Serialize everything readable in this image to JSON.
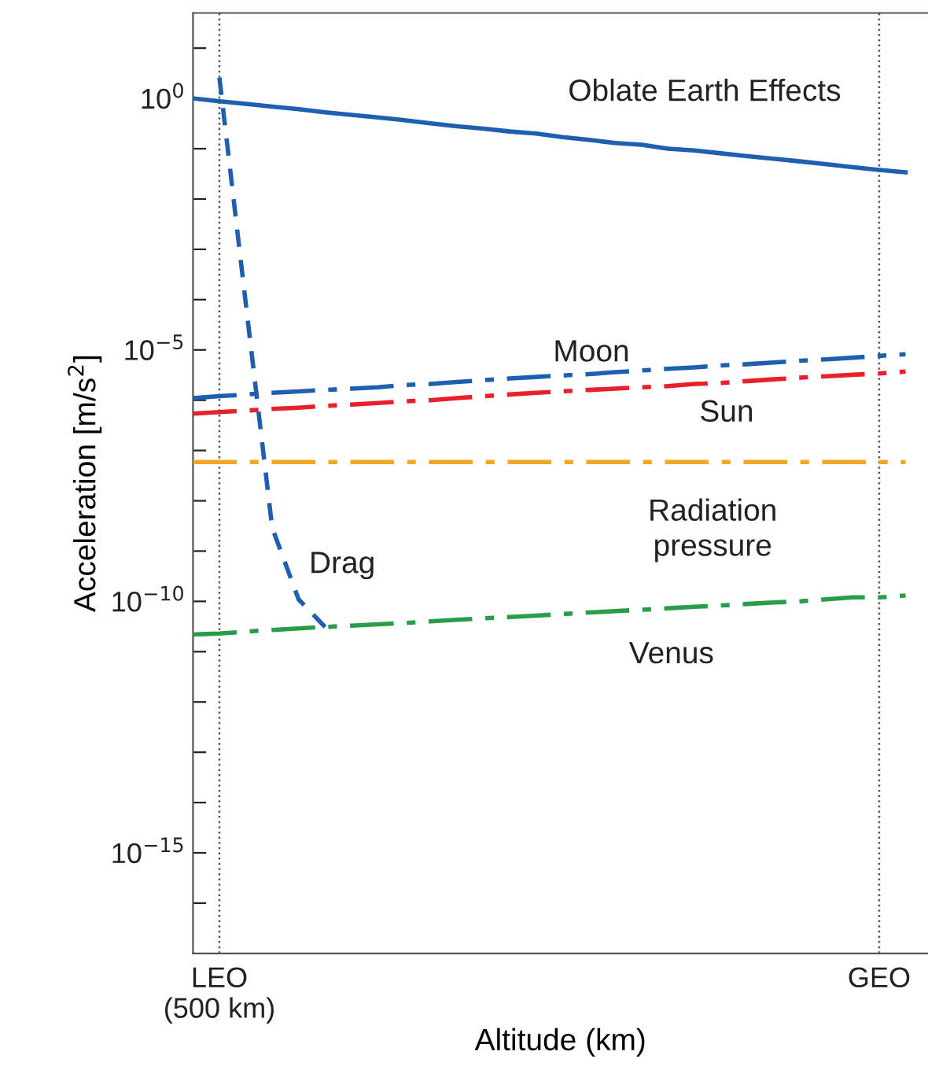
{
  "chart_data": {
    "type": "line",
    "xlabel": "Altitude (km)",
    "ylabel": "Acceleration [m/s$^{2}$]",
    "log": "y",
    "categories": [
      null,
      "LEO\n(500 km)",
      null,
      null,
      null,
      null,
      null,
      null,
      null,
      null,
      null,
      null,
      null,
      null,
      null,
      null,
      null,
      null,
      null,
      null,
      null,
      null,
      null,
      null,
      null,
      null,
      "GEO",
      null
    ],
    "ylim": [
      1e-17,
      50
    ],
    "yticks": [
      {
        "value": 10,
        "label": null
      },
      {
        "value": 1,
        "label": "10$^{0}$"
      },
      {
        "value": 0.1,
        "label": null
      },
      {
        "value": 0.01,
        "label": null
      },
      {
        "value": 0.001,
        "label": null
      },
      {
        "value": 0.0001,
        "label": null
      },
      {
        "value": 1e-05,
        "label": "10$^{−5}$"
      },
      {
        "value": 1e-06,
        "label": null
      },
      {
        "value": 1e-07,
        "label": null
      },
      {
        "value": 1e-08,
        "label": null
      },
      {
        "value": 1e-09,
        "label": null
      },
      {
        "value": 1e-10,
        "label": "10$^{−10}$"
      },
      {
        "value": 1e-11,
        "label": null
      },
      {
        "value": 1e-12,
        "label": null
      },
      {
        "value": 1e-13,
        "label": null
      },
      {
        "value": 1e-14,
        "label": null
      },
      {
        "value": 1e-15,
        "label": "10$^{−15}$"
      },
      {
        "value": 1e-16,
        "label": null
      }
    ],
    "ref_lines": [
      {
        "axis": "x",
        "value": "LEO\n(500 km)",
        "color": "#555555",
        "line_style": "dotted"
      },
      {
        "axis": "x",
        "value": "GEO",
        "color": "#555555",
        "line_style": "dotted"
      }
    ],
    "series": [
      {
        "name": "Oblate Earth Effects",
        "color": "#1f5fb0",
        "line_style": "solid",
        "values": [
          1,
          0.88,
          0.78,
          0.69,
          0.61,
          0.53,
          0.47,
          0.42,
          0.37,
          0.32,
          0.28,
          0.25,
          0.22,
          0.2,
          0.17,
          0.15,
          0.13,
          0.12,
          0.1,
          0.092,
          0.081,
          0.071,
          0.063,
          0.056,
          0.049,
          0.043,
          0.038,
          0.034
        ]
      },
      {
        "name": "Moon",
        "color": "#1f5fb0",
        "line_style": "dashdot",
        "values": [
          1.1e-06,
          1.2e-06,
          1.3e-06,
          1.4e-06,
          1.5e-06,
          1.6e-06,
          1.7e-06,
          1.8e-06,
          2e-06,
          2.1e-06,
          2.3e-06,
          2.5e-06,
          2.7e-06,
          2.9e-06,
          3.1e-06,
          3.3e-06,
          3.6e-06,
          3.9e-06,
          4.2e-06,
          4.5e-06,
          4.9e-06,
          5.2e-06,
          5.6e-06,
          6.1e-06,
          6.5e-06,
          7e-06,
          7.6e-06,
          8.2e-06
        ]
      },
      {
        "name": "Sun",
        "color": "#e8202a",
        "line_style": "dashdot",
        "values": [
          5.4e-07,
          5.8e-07,
          6.2e-07,
          6.7e-07,
          7.1e-07,
          7.7e-07,
          8.2e-07,
          8.8e-07,
          9.5e-07,
          1e-06,
          1.1e-06,
          1.2e-06,
          1.3e-06,
          1.4e-06,
          1.5e-06,
          1.6e-06,
          1.7e-06,
          1.8e-06,
          1.9e-06,
          2.1e-06,
          2.2e-06,
          2.4e-06,
          2.6e-06,
          2.8e-06,
          3e-06,
          3.2e-06,
          3.4e-06,
          3.7e-06
        ]
      },
      {
        "name": "Radiation\npressure",
        "color": "#f5a623",
        "line_style": "dashdot",
        "values": [
          5.9e-08,
          5.9e-08,
          5.9e-08,
          5.9e-08,
          5.9e-08,
          5.9e-08,
          5.9e-08,
          5.9e-08,
          5.9e-08,
          5.9e-08,
          5.9e-08,
          5.9e-08,
          5.9e-08,
          5.9e-08,
          5.9e-08,
          5.9e-08,
          5.9e-08,
          5.9e-08,
          5.9e-08,
          5.9e-08,
          5.9e-08,
          5.9e-08,
          5.9e-08,
          5.9e-08,
          5.9e-08,
          5.9e-08,
          5.9e-08,
          5.9e-08
        ]
      },
      {
        "name": "Drag",
        "color": "#1f5fb0",
        "line_style": "dashed",
        "values": [
          null,
          2.6,
          8.3e-05,
          2.9e-09,
          1.1e-10,
          3.1e-11,
          null,
          null,
          null,
          null,
          null,
          null,
          null,
          null,
          null,
          null,
          null,
          null,
          null,
          null,
          null,
          null,
          null,
          null,
          null,
          null,
          null,
          null
        ]
      },
      {
        "name": "Venus",
        "color": "#2a9d4a",
        "line_style": "dashdot",
        "values": [
          2.2e-11,
          2.3e-11,
          2.5e-11,
          2.7e-11,
          2.9e-11,
          3.1e-11,
          3.3e-11,
          3.5e-11,
          3.7e-11,
          4e-11,
          4.3e-11,
          4.6e-11,
          4.9e-11,
          5.2e-11,
          5.6e-11,
          6e-11,
          6.4e-11,
          6.8e-11,
          7.3e-11,
          7.8e-11,
          8.3e-11,
          8.9e-11,
          9.5e-11,
          1e-10,
          1.1e-10,
          1.2e-10,
          1.2e-10,
          1.3e-10
        ]
      }
    ]
  }
}
